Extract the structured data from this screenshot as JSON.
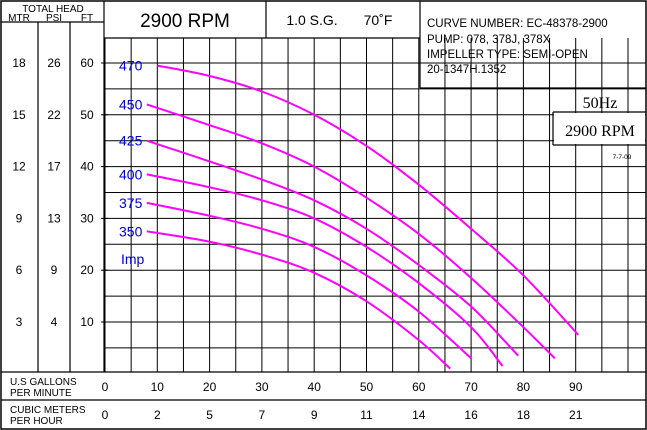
{
  "header": {
    "total_head": "TOTAL HEAD",
    "col_mtr": "MTR",
    "col_psi": "PSI",
    "col_ft": "FT",
    "rpm": "2900 RPM",
    "sg": "1.0 S.G.",
    "temp": "70˚F",
    "info_line1": "CURVE NUMBER: EC-48378-2900",
    "info_line2": "PUMP: 078, 378J, 378X",
    "info_line3": "IMPELLER TYPE: SEMI-OPEN",
    "info_line4": "20-1347H.1352",
    "hz_line1": "50Hz",
    "hz_line2": "2900 RPM",
    "date": "7-7-09"
  },
  "axis": {
    "x1_label_line1": "U.S GALLONS",
    "x1_label_line2": "PER MINUTE",
    "x2_label_line1": "CUBIC METERS",
    "x2_label_line2": "PER HOUR",
    "imp_label": "Imp"
  },
  "colors": {
    "curve": "#ff00ff",
    "impeller_label": "#0000cc",
    "grid": "#000000"
  },
  "chart_data": {
    "type": "line",
    "title": "2900 RPM",
    "xlabel": "U.S GALLONS PER MINUTE",
    "ylabel": "TOTAL HEAD FT",
    "xlim": [
      0,
      100
    ],
    "ylim": [
      -15,
      65
    ],
    "x_ticks": [
      "0",
      "10",
      "20",
      "30",
      "40",
      "50",
      "60",
      "70",
      "80",
      "90"
    ],
    "x_tick_values": [
      0,
      10,
      20,
      30,
      40,
      50,
      60,
      70,
      80,
      90
    ],
    "x2_ticks": [
      "0",
      "2",
      "5",
      "7",
      "9",
      "11",
      "14",
      "16",
      "18",
      "21"
    ],
    "y_ft_ticks": [
      "60",
      "50",
      "40",
      "30",
      "20",
      "10"
    ],
    "y_ft_values": [
      60,
      50,
      40,
      30,
      20,
      10
    ],
    "y_psi_ticks": [
      "26",
      "22",
      "17",
      "13",
      "9",
      "4"
    ],
    "y_mtr_ticks": [
      "18",
      "15",
      "12",
      "9",
      "6",
      "3"
    ],
    "grid": true,
    "series": [
      {
        "name": "470",
        "x": [
          10,
          20,
          30,
          40,
          50,
          60,
          70,
          80,
          90.5
        ],
        "y": [
          59.5,
          57.5,
          54.5,
          50,
          44,
          36.5,
          28,
          19,
          7.5
        ]
      },
      {
        "name": "450",
        "x": [
          8,
          20,
          30,
          40,
          50,
          60,
          70,
          80,
          86
        ],
        "y": [
          52,
          48,
          44.5,
          40,
          34,
          27,
          18.5,
          9,
          3
        ]
      },
      {
        "name": "425",
        "x": [
          8,
          20,
          30,
          40,
          50,
          60,
          70,
          79
        ],
        "y": [
          45,
          41,
          37.5,
          33.5,
          28,
          21,
          13,
          3.5
        ]
      },
      {
        "name": "400",
        "x": [
          8,
          20,
          30,
          40,
          50,
          60,
          70,
          76
        ],
        "y": [
          38.5,
          36,
          33.5,
          30,
          24.5,
          17.5,
          9,
          1.5
        ]
      },
      {
        "name": "375",
        "x": [
          8,
          20,
          30,
          40,
          50,
          60,
          70
        ],
        "y": [
          33,
          30.5,
          28,
          24.5,
          19,
          12,
          3
        ]
      },
      {
        "name": "350",
        "x": [
          8,
          20,
          30,
          40,
          50,
          60,
          66
        ],
        "y": [
          27.5,
          25.5,
          23,
          19.5,
          14,
          6.5,
          1
        ]
      }
    ]
  }
}
